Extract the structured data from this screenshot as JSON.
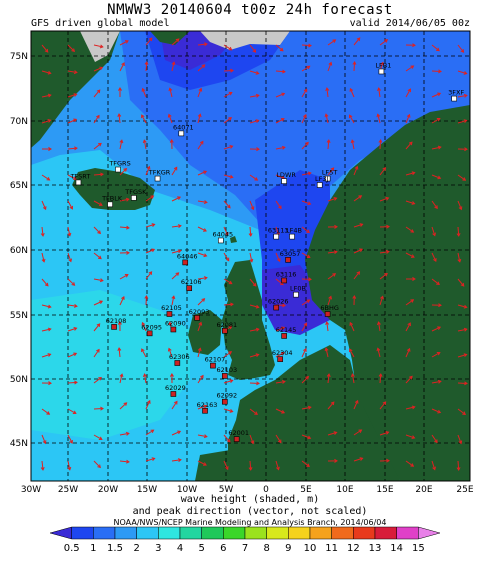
{
  "header": {
    "title": "NMWW3 20140604 t00z    24h forecast",
    "model": "GFS driven global model",
    "valid": "valid 2014/06/05 00z"
  },
  "axes": {
    "lat_labels": [
      "75N",
      "70N",
      "65N",
      "60N",
      "55N",
      "50N",
      "45N"
    ],
    "lon_labels": [
      "30W",
      "25W",
      "20W",
      "15W",
      "10W",
      "5W",
      "0",
      "5E",
      "10E",
      "15E",
      "20E",
      "25E"
    ]
  },
  "stations": [
    {
      "id": "LFB1",
      "lon": 14.3,
      "lat": 73.8
    },
    {
      "id": "3FXF",
      "lon": 23.5,
      "lat": 71.7
    },
    {
      "id": "64071",
      "lon": -11.0,
      "lat": 69.0
    },
    {
      "id": "TFGRS",
      "lon": -19.0,
      "lat": 66.2
    },
    {
      "id": "TFKGR",
      "lon": -14.0,
      "lat": 65.5
    },
    {
      "id": "TFSRT",
      "lon": -24.0,
      "lat": 65.2
    },
    {
      "id": "TFBLK",
      "lon": -20.0,
      "lat": 63.5
    },
    {
      "id": "TFGSK",
      "lon": -17.0,
      "lat": 64.0
    },
    {
      "id": "LDWR",
      "lon": 2.0,
      "lat": 65.3
    },
    {
      "id": "LF5T",
      "lon": 7.5,
      "lat": 65.5
    },
    {
      "id": "LF3J",
      "lon": 6.5,
      "lat": 65.0
    },
    {
      "id": "64045",
      "lon": -6.0,
      "lat": 60.7
    },
    {
      "id": "63113",
      "lon": 1.0,
      "lat": 61.0
    },
    {
      "id": "LF4B",
      "lon": 3.0,
      "lat": 61.0
    },
    {
      "id": "63057",
      "lon": 2.5,
      "lat": 59.2
    },
    {
      "id": "64046",
      "lon": -10.5,
      "lat": 59.0
    },
    {
      "id": "62106",
      "lon": -10.0,
      "lat": 57.0
    },
    {
      "id": "63116",
      "lon": 2.0,
      "lat": 57.6
    },
    {
      "id": "LF0B",
      "lon": 3.5,
      "lat": 56.5
    },
    {
      "id": "62026",
      "lon": 1.0,
      "lat": 55.5
    },
    {
      "id": "6BHG",
      "lon": 7.5,
      "lat": 55.0
    },
    {
      "id": "62105",
      "lon": -12.5,
      "lat": 55.0
    },
    {
      "id": "62093",
      "lon": -9.0,
      "lat": 54.7
    },
    {
      "id": "62108",
      "lon": -19.5,
      "lat": 54.0
    },
    {
      "id": "62095",
      "lon": -15.0,
      "lat": 53.5
    },
    {
      "id": "62090",
      "lon": -12.0,
      "lat": 53.8
    },
    {
      "id": "62145",
      "lon": 2.0,
      "lat": 53.3
    },
    {
      "id": "62081",
      "lon": -5.5,
      "lat": 53.7
    },
    {
      "id": "62304",
      "lon": 1.5,
      "lat": 51.5
    },
    {
      "id": "62306",
      "lon": -11.5,
      "lat": 51.2
    },
    {
      "id": "62107",
      "lon": -7.0,
      "lat": 51.0
    },
    {
      "id": "62103",
      "lon": -5.5,
      "lat": 50.2
    },
    {
      "id": "62029",
      "lon": -12.0,
      "lat": 48.8
    },
    {
      "id": "62092",
      "lon": -5.5,
      "lat": 48.2
    },
    {
      "id": "62163",
      "lon": -8.0,
      "lat": 47.5
    },
    {
      "id": "62001",
      "lon": -4.0,
      "lat": 45.3
    }
  ],
  "footer": {
    "caption_line1": "wave height (shaded, m)",
    "caption_line2": "and peak direction (vector, not scaled)",
    "credit": "NOAA/NWS/NCEP Marine Modeling and Analysis Branch, 2014/06/04"
  },
  "colorbar": {
    "labels": [
      "0.5",
      "1",
      "1.5",
      "2",
      "3",
      "4",
      "5",
      "6",
      "7",
      "8",
      "9",
      "10",
      "11",
      "12",
      "13",
      "14",
      "15"
    ],
    "colors": [
      "#3a2bd6",
      "#1e46f0",
      "#2a6ef5",
      "#2d9af5",
      "#2cc6f5",
      "#2ee6e0",
      "#22d6a0",
      "#1fc85a",
      "#3bd62a",
      "#9be21e",
      "#d8e81c",
      "#f5d21c",
      "#f5a21c",
      "#f06a1c",
      "#e83a1c",
      "#d81c3a",
      "#e040c8",
      "#e880e8"
    ]
  },
  "colors": {
    "land": "#1f5a2c",
    "ice": "#c8c8c8",
    "vector": "#dd2222",
    "station_red": "#cc2222",
    "station_white": "#ffffff"
  }
}
